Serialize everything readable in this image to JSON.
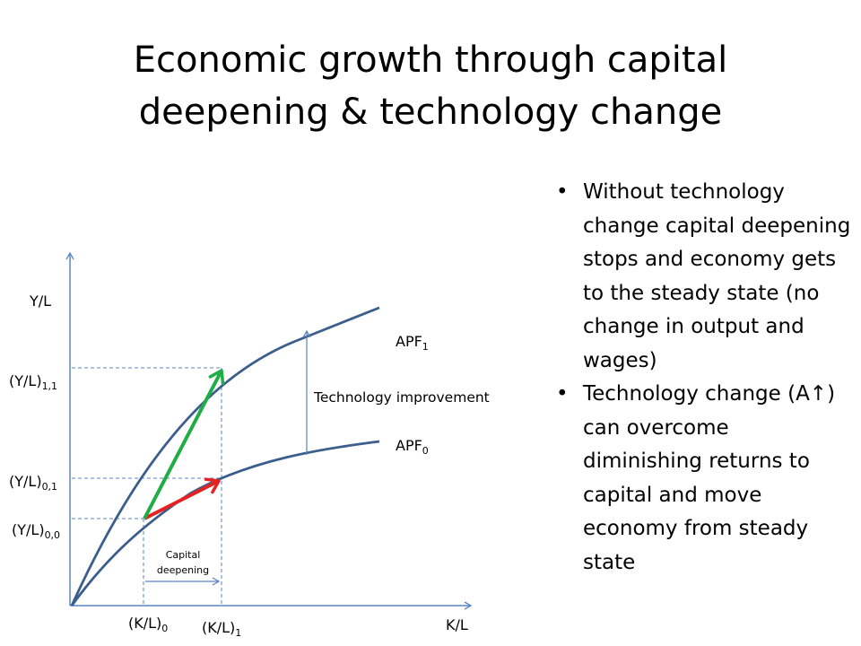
{
  "title": {
    "line1": "Economic growth through capital",
    "line2": "deepening & technology change"
  },
  "bullets": [
    "Without technology change capital deepening stops and economy gets to the steady state (no change in output and wages)",
    "Technology change (A↑) can overcome diminishing returns to capital and move economy from steady state"
  ],
  "diagram": {
    "y_axis_label": "Y/L",
    "x_axis_label": "K/L",
    "curves": {
      "apf1": {
        "base": "APF",
        "sub": "1"
      },
      "apf0": {
        "base": "APF",
        "sub": "0"
      }
    },
    "y_ticks": [
      {
        "base": "(Y/L)",
        "sub": "1,1"
      },
      {
        "base": "(Y/L)",
        "sub": "0,1"
      },
      {
        "base": "(Y/L)",
        "sub": "0,0"
      }
    ],
    "x_ticks": [
      {
        "base": "(K/L)",
        "sub": "0"
      },
      {
        "base": "(K/L)",
        "sub": "1"
      }
    ],
    "technology_label": "Technology improvement",
    "capital_deepening_line1": "Capital",
    "capital_deepening_line2": "deepening",
    "colors": {
      "curve": "#3b5e8c",
      "axis": "#5b84c4",
      "guide": "#5b84c4",
      "capital_arrow": "#e52222",
      "technology_arrow": "#1fae45"
    }
  }
}
